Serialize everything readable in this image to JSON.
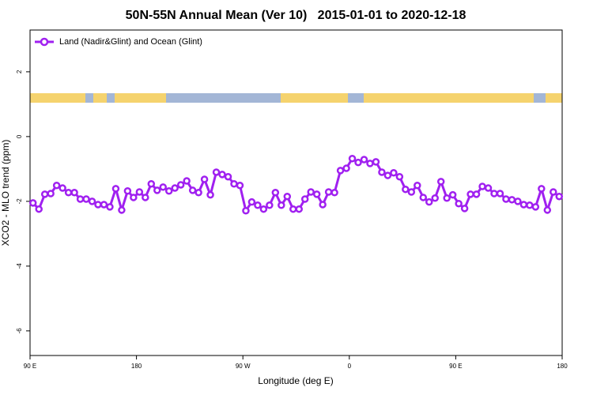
{
  "chart_data": {
    "type": "line",
    "title": "50N-55N Annual Mean (Ver 10)   2015-01-01 to 2020-12-18",
    "x_label": "Longitude (deg E)",
    "y_label": "XCO2 - MLO trend (ppm)",
    "x": [
      92.5,
      97.5,
      102.5,
      107.5,
      112.5,
      117.5,
      122.5,
      127.5,
      132.5,
      137.5,
      142.5,
      147.5,
      152.5,
      157.5,
      162.5,
      167.5,
      172.5,
      177.5,
      182.5,
      187.5,
      192.5,
      197.5,
      202.5,
      207.5,
      212.5,
      217.5,
      222.5,
      227.5,
      232.5,
      237.5,
      242.5,
      247.5,
      252.5,
      257.5,
      262.5,
      267.5,
      272.5,
      277.5,
      282.5,
      287.5,
      292.5,
      297.5,
      302.5,
      307.5,
      312.5,
      317.5,
      322.5,
      327.5,
      332.5,
      337.5,
      342.5,
      347.5,
      352.5,
      357.5,
      362.5,
      367.5,
      372.5,
      377.5,
      382.5,
      387.5,
      392.5,
      397.5,
      402.5,
      407.5,
      412.5,
      417.5,
      422.5,
      427.5,
      432.5,
      437.5,
      442.5,
      447.5,
      452.5,
      457.5,
      462.5,
      467.5,
      472.5,
      477.5,
      482.5,
      487.5,
      492.5,
      497.5,
      502.5,
      507.5,
      512.5,
      517.5,
      522.5,
      527.5,
      532.5,
      537.5
    ],
    "series": [
      {
        "name": "Land (Nadir&Glint) and Ocean (Glint)",
        "color": "#a020f0",
        "values": [
          -2.05,
          -2.24,
          -1.78,
          -1.76,
          -1.51,
          -1.59,
          -1.73,
          -1.73,
          -1.93,
          -1.93,
          -2.0,
          -2.1,
          -2.1,
          -2.17,
          -1.61,
          -2.27,
          -1.68,
          -1.88,
          -1.71,
          -1.88,
          -1.46,
          -1.66,
          -1.56,
          -1.68,
          -1.59,
          -1.49,
          -1.37,
          -1.66,
          -1.73,
          -1.32,
          -1.8,
          -1.1,
          -1.17,
          -1.24,
          -1.46,
          -1.51,
          -2.29,
          -2.02,
          -2.12,
          -2.24,
          -2.12,
          -1.73,
          -2.12,
          -1.85,
          -2.24,
          -2.24,
          -1.93,
          -1.71,
          -1.78,
          -2.1,
          -1.71,
          -1.73,
          -1.05,
          -0.98,
          -0.68,
          -0.8,
          -0.71,
          -0.83,
          -0.78,
          -1.1,
          -1.2,
          -1.12,
          -1.24,
          -1.63,
          -1.71,
          -1.51,
          -1.88,
          -2.02,
          -1.9,
          -1.39,
          -1.9,
          -1.8,
          -2.07,
          -2.22,
          -1.78,
          -1.78,
          -1.54,
          -1.59,
          -1.76,
          -1.76,
          -1.93,
          -1.95,
          -2.0,
          -2.1,
          -2.12,
          -2.17,
          -1.61,
          -2.27,
          -1.71,
          -1.85
        ]
      }
    ],
    "xlim": [
      90,
      540
    ],
    "xticks": [
      {
        "value": 90,
        "label": "90 E"
      },
      {
        "value": 180,
        "label": "180"
      },
      {
        "value": 270,
        "label": "90 W"
      },
      {
        "value": 360,
        "label": "0"
      },
      {
        "value": 450,
        "label": "90 E"
      },
      {
        "value": 540,
        "label": "180"
      }
    ],
    "ylim": [
      -6.76,
      3.29
    ],
    "yticks": [
      2,
      0,
      -2,
      -4,
      -6
    ],
    "legend": "top-left"
  }
}
